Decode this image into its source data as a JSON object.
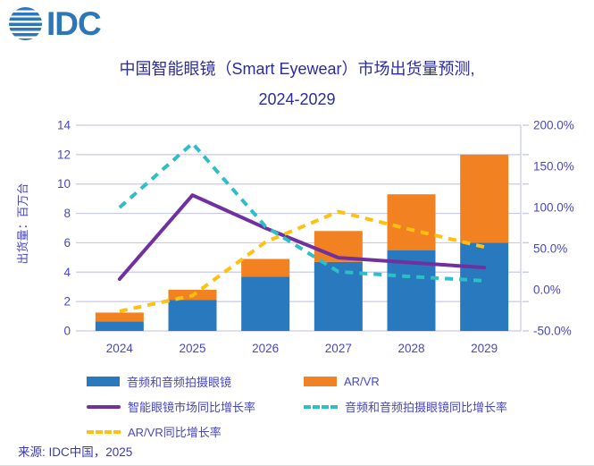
{
  "logo": {
    "text": "IDC"
  },
  "title": {
    "line1": "中国智能眼镜（Smart Eyewear）市场出货量预测,",
    "line2": "2024-2029"
  },
  "source": "来源: IDC中国，2025",
  "colors": {
    "bar_blue": "#2879BE",
    "bar_orange": "#F28121",
    "line_purple": "#7030A0",
    "line_teal": "#2FBEC9",
    "line_yellow": "#FFC010",
    "grid": "#C9C9E8",
    "axis_text": "#4646C8",
    "title_text": "#2B2B9E",
    "source_text": "#3A3AAE",
    "logo_blue": "#2C77B8"
  },
  "chart_data": {
    "type": "bar",
    "subtype": "stacked-bar-with-lines",
    "title": "中国智能眼镜（Smart Eyewear）市场出货量预测, 2024-2029",
    "categories": [
      "2024",
      "2025",
      "2026",
      "2027",
      "2028",
      "2029"
    ],
    "series": [
      {
        "name": "音频和音频拍摄眼镜",
        "type": "bar",
        "stack": true,
        "axis": "left",
        "color_key": "bar_blue",
        "values": [
          0.65,
          2.1,
          3.7,
          4.7,
          5.5,
          6.0
        ]
      },
      {
        "name": "AR/VR",
        "type": "bar",
        "stack": true,
        "axis": "left",
        "color_key": "bar_orange",
        "values": [
          0.6,
          0.7,
          1.2,
          2.1,
          3.8,
          6.0
        ]
      },
      {
        "name": "智能眼镜市场同比增长率",
        "type": "line",
        "style": "solid",
        "axis": "right",
        "color_key": "line_purple",
        "values": [
          13,
          115,
          75,
          39,
          33,
          27
        ]
      },
      {
        "name": "音频和音频拍摄眼镜同比增长率",
        "type": "line",
        "style": "dashed",
        "axis": "right",
        "color_key": "line_teal",
        "values": [
          100,
          178,
          77,
          22,
          16,
          11
        ]
      },
      {
        "name": "AR/VR同比增长率",
        "type": "line",
        "style": "dashed",
        "axis": "right",
        "color_key": "line_yellow",
        "values": [
          -26,
          -7,
          58,
          95,
          73,
          52
        ]
      }
    ],
    "left_axis": {
      "label": "出货量：百万台",
      "min": 0,
      "max": 14,
      "step": 2,
      "ticks": [
        0,
        2,
        4,
        6,
        8,
        10,
        12,
        14
      ]
    },
    "right_axis": {
      "min": -50,
      "max": 200,
      "step": 50,
      "tick_labels": [
        "200.0%",
        "150.0%",
        "100.0%",
        "50.0%",
        "0.0%",
        "-50.0%"
      ]
    },
    "grid": "horizontal",
    "legend_position": "bottom"
  },
  "legend": {
    "items": [
      {
        "label": "音频和音频拍摄眼镜",
        "swatch": "bar"
      },
      {
        "label": "AR/VR",
        "swatch": "bar"
      },
      {
        "label": "智能眼镜市场同比增长率",
        "swatch": "solid-line"
      },
      {
        "label": "音频和音频拍摄眼镜同比增长率",
        "swatch": "dashed-line"
      },
      {
        "label": "AR/VR同比增长率",
        "swatch": "dashed-line"
      }
    ]
  }
}
